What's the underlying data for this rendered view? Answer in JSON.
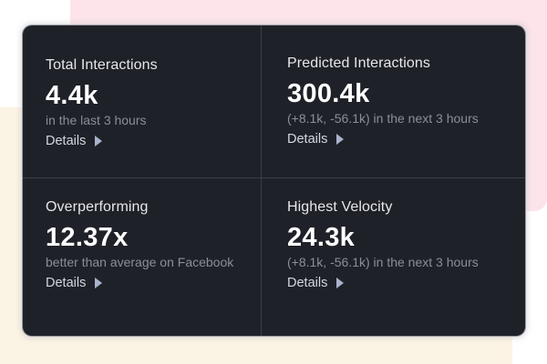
{
  "colors": {
    "card_bg": "#1f2129",
    "pink_backdrop": "#fce4ea",
    "cream_backdrop": "#fbf3e3",
    "divider": "#3c3f47",
    "arrow": "#aab3cc"
  },
  "metrics": [
    {
      "title": "Total Interactions",
      "value": "4.4k",
      "subtitle": "in the last 3 hours",
      "details_label": "Details",
      "icon": "caret-right-icon"
    },
    {
      "title": "Predicted Interactions",
      "value": "300.4k",
      "subtitle": "(+8.1k, -56.1k) in the next 3 hours",
      "details_label": "Details",
      "icon": "caret-right-icon"
    },
    {
      "title": "Overperforming",
      "value": "12.37x",
      "subtitle": "better than average on Facebook",
      "details_label": "Details",
      "icon": "caret-right-icon"
    },
    {
      "title": "Highest Velocity",
      "value": "24.3k",
      "subtitle": "(+8.1k, -56.1k) in the next 3 hours",
      "details_label": "Details",
      "icon": "caret-right-icon"
    }
  ]
}
